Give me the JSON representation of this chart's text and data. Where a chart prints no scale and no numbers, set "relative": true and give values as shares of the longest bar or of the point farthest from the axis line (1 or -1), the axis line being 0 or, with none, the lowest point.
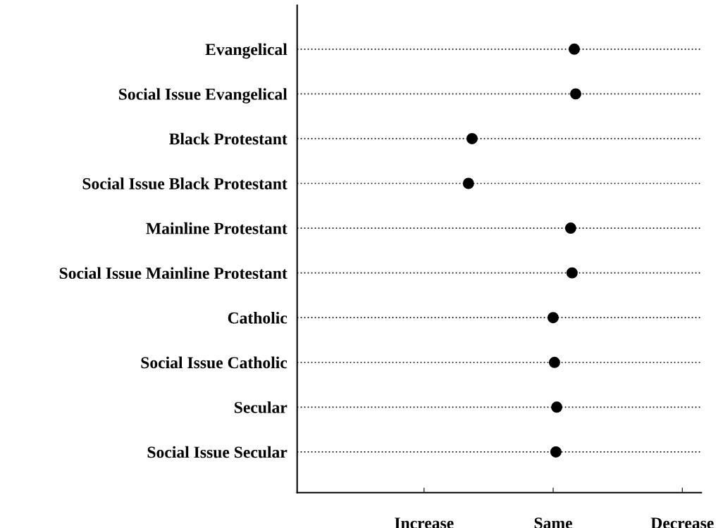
{
  "chart_data": {
    "type": "scatter",
    "orientation": "horizontal",
    "relative": true,
    "categories": [
      "Evangelical",
      "Social Issue Evangelical",
      "Black Protestant",
      "Social Issue Black Protestant",
      "Mainline Protestant",
      "Social Issue Mainline Protestant",
      "Catholic",
      "Social Issue Catholic",
      "Secular",
      "Social Issue Secular"
    ],
    "values": [
      0.995,
      1.0,
      0.628,
      0.615,
      0.982,
      0.987,
      0.919,
      0.924,
      0.932,
      0.929
    ],
    "color": "#000000",
    "annotations": [
      "Increase",
      "Same",
      "Decrease"
    ],
    "grid": "y",
    "marker": "circle"
  }
}
